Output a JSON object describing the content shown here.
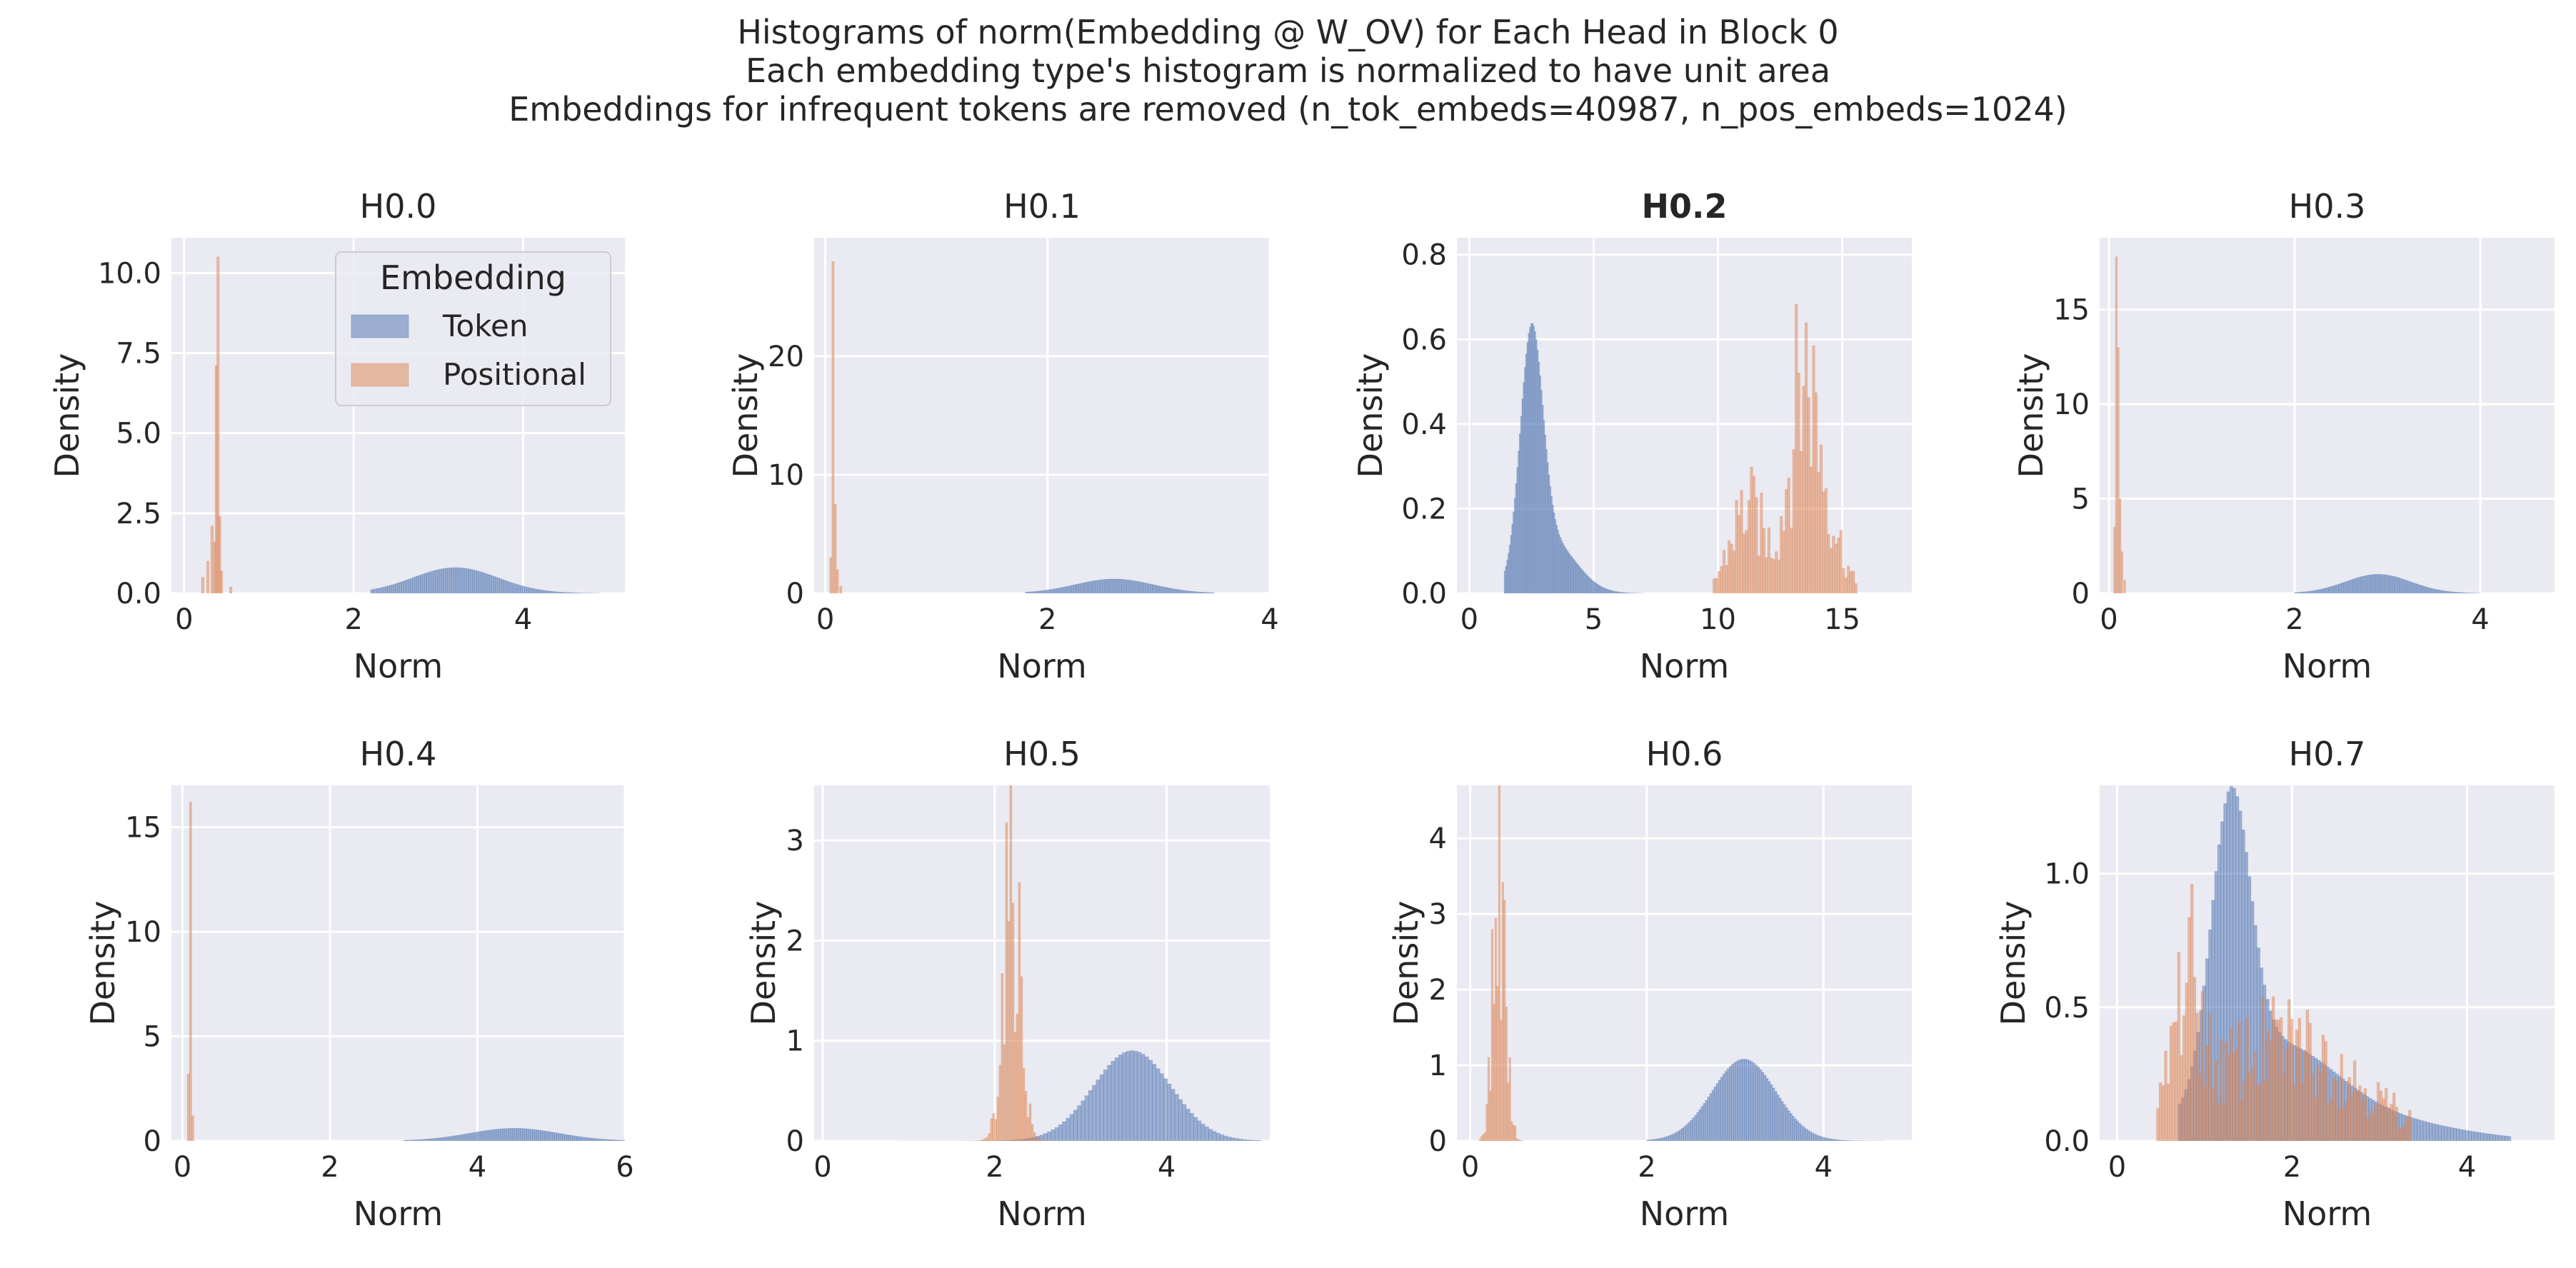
{
  "figure": {
    "title_lines": [
      "Histograms of norm(Embedding @ W_OV) for Each Head in Block 0",
      "Each embedding type's histogram is normalized to have unit area",
      "Embeddings for infrequent tokens are removed (n_tok_embeds=40987, n_pos_embeds=1024)"
    ]
  },
  "colors": {
    "token": "#4c72b0",
    "positional": "#dd8452",
    "panel_bg": "#eaeaf2",
    "grid": "#ffffff"
  },
  "chart_data": [
    {
      "type": "bar",
      "title": "H0.0",
      "title_bold": false,
      "xlabel": "Norm",
      "ylabel": "Density",
      "xlim": [
        -0.15,
        5.2
      ],
      "ylim": [
        0,
        11.1
      ],
      "xticks": [
        0,
        2,
        4
      ],
      "xtick_labels": [
        "0",
        "2",
        "4"
      ],
      "yticks": [
        0,
        2.5,
        5,
        7.5,
        10
      ],
      "ytick_labels": [
        "0.0",
        "2.5",
        "5.0",
        "7.5",
        "10.0"
      ],
      "legend": {
        "title": "Embedding",
        "placement": "top-right",
        "entries": [
          "Token",
          "Positional"
        ]
      },
      "series": [
        {
          "name": "Token",
          "kind": "gauss",
          "components": [
            [
              0.8,
              3.2,
              0.5
            ]
          ],
          "range": [
            2.2,
            4.9
          ]
        },
        {
          "name": "Positional",
          "kind": "spikes",
          "points": [
            [
              0.22,
              0.5
            ],
            [
              0.28,
              1.0
            ],
            [
              0.33,
              2.1
            ],
            [
              0.36,
              1.6
            ],
            [
              0.38,
              7.1
            ],
            [
              0.4,
              10.5
            ],
            [
              0.42,
              2.4
            ],
            [
              0.44,
              0.7
            ],
            [
              0.55,
              0.2
            ]
          ],
          "width": 0.03
        }
      ]
    },
    {
      "type": "bar",
      "title": "H0.1",
      "title_bold": false,
      "xlabel": "Norm",
      "ylabel": "Density",
      "xlim": [
        -0.1,
        4.0
      ],
      "ylim": [
        0,
        30.0
      ],
      "xticks": [
        0,
        2,
        4
      ],
      "xtick_labels": [
        "0",
        "2",
        "4"
      ],
      "yticks": [
        0,
        10,
        20
      ],
      "ytick_labels": [
        "0",
        "10",
        "20"
      ],
      "series": [
        {
          "name": "Token",
          "kind": "gauss",
          "components": [
            [
              1.2,
              2.6,
              0.35
            ]
          ],
          "range": [
            1.8,
            3.5
          ]
        },
        {
          "name": "Positional",
          "kind": "spikes",
          "points": [
            [
              0.05,
              3.0
            ],
            [
              0.07,
              28.0
            ],
            [
              0.09,
              7.5
            ],
            [
              0.11,
              2.0
            ],
            [
              0.14,
              0.6
            ]
          ],
          "width": 0.02
        }
      ]
    },
    {
      "type": "bar",
      "title": "H0.2",
      "title_bold": true,
      "xlabel": "Norm",
      "ylabel": "Density",
      "xlim": [
        -0.5,
        17.8
      ],
      "ylim": [
        0,
        0.84
      ],
      "xticks": [
        0,
        5,
        10,
        15
      ],
      "xtick_labels": [
        "0",
        "5",
        "10",
        "15"
      ],
      "yticks": [
        0,
        0.2,
        0.4,
        0.6,
        0.8
      ],
      "ytick_labels": [
        "0.0",
        "0.2",
        "0.4",
        "0.6",
        "0.8"
      ],
      "series": [
        {
          "name": "Token",
          "kind": "gauss",
          "components": [
            [
              0.55,
              2.5,
              0.45
            ],
            [
              0.12,
              3.3,
              1.0
            ]
          ],
          "range": [
            1.4,
            7.0
          ]
        },
        {
          "name": "Positional",
          "kind": "noisy",
          "components": [
            [
              0.25,
              11.2,
              0.7
            ],
            [
              0.65,
              13.5,
              0.6
            ],
            [
              0.12,
              14.7,
              0.5
            ]
          ],
          "range": [
            9.8,
            15.6
          ],
          "step": 0.1
        }
      ]
    },
    {
      "type": "bar",
      "title": "H0.3",
      "title_bold": false,
      "xlabel": "Norm",
      "ylabel": "Density",
      "xlim": [
        -0.1,
        4.8
      ],
      "ylim": [
        0,
        18.8
      ],
      "xticks": [
        0,
        2,
        4
      ],
      "xtick_labels": [
        "0",
        "2",
        "4"
      ],
      "yticks": [
        0,
        5,
        10,
        15
      ],
      "ytick_labels": [
        "0",
        "5",
        "10",
        "15"
      ],
      "series": [
        {
          "name": "Token",
          "kind": "gauss",
          "components": [
            [
              1.0,
              2.9,
              0.35
            ]
          ],
          "range": [
            2.0,
            4.0
          ]
        },
        {
          "name": "Positional",
          "kind": "spikes",
          "points": [
            [
              0.06,
              3.5
            ],
            [
              0.08,
              17.8
            ],
            [
              0.1,
              13.0
            ],
            [
              0.12,
              5.0
            ],
            [
              0.14,
              2.2
            ],
            [
              0.17,
              0.7
            ]
          ],
          "width": 0.02
        }
      ]
    },
    {
      "type": "bar",
      "title": "H0.4",
      "title_bold": false,
      "xlabel": "Norm",
      "ylabel": "Density",
      "xlim": [
        -0.15,
        6.0
      ],
      "ylim": [
        0,
        17.0
      ],
      "xticks": [
        0,
        2,
        4,
        6
      ],
      "xtick_labels": [
        "0",
        "2",
        "4",
        "6"
      ],
      "yticks": [
        0,
        5,
        10,
        15
      ],
      "ytick_labels": [
        "0",
        "5",
        "10",
        "15"
      ],
      "series": [
        {
          "name": "Token",
          "kind": "gauss",
          "components": [
            [
              0.6,
              4.5,
              0.6
            ]
          ],
          "range": [
            3.0,
            6.0
          ]
        },
        {
          "name": "Positional",
          "kind": "spikes",
          "points": [
            [
              0.08,
              3.2
            ],
            [
              0.11,
              16.2
            ],
            [
              0.14,
              1.2
            ]
          ],
          "width": 0.03
        }
      ]
    },
    {
      "type": "bar",
      "title": "H0.5",
      "title_bold": false,
      "xlabel": "Norm",
      "ylabel": "Density",
      "xlim": [
        -0.1,
        5.2
      ],
      "ylim": [
        0,
        3.55
      ],
      "xticks": [
        0,
        2,
        4
      ],
      "xtick_labels": [
        "0",
        "2",
        "4"
      ],
      "yticks": [
        0,
        1,
        2,
        3
      ],
      "ytick_labels": [
        "0",
        "1",
        "2",
        "3"
      ],
      "series": [
        {
          "name": "Token",
          "kind": "gauss",
          "components": [
            [
              0.9,
              3.6,
              0.45
            ]
          ],
          "range": [
            0.3,
            5.1
          ]
        },
        {
          "name": "Positional",
          "kind": "noisy",
          "components": [
            [
              3.3,
              2.2,
              0.1
            ]
          ],
          "range": [
            1.7,
            2.6
          ],
          "step": 0.025
        }
      ]
    },
    {
      "type": "bar",
      "title": "H0.6",
      "title_bold": false,
      "xlabel": "Norm",
      "ylabel": "Density",
      "xlim": [
        -0.15,
        5.0
      ],
      "ylim": [
        0,
        4.7
      ],
      "xticks": [
        0,
        2,
        4
      ],
      "xtick_labels": [
        "0",
        "2",
        "4"
      ],
      "yticks": [
        0,
        1,
        2,
        3,
        4
      ],
      "ytick_labels": [
        "0",
        "1",
        "2",
        "3",
        "4"
      ],
      "series": [
        {
          "name": "Token",
          "kind": "gauss",
          "components": [
            [
              1.08,
              3.1,
              0.36
            ]
          ],
          "range": [
            2.0,
            4.7
          ]
        },
        {
          "name": "Positional",
          "kind": "noisy",
          "components": [
            [
              4.3,
              0.33,
              0.07
            ]
          ],
          "range": [
            0.1,
            0.6
          ],
          "step": 0.02
        }
      ]
    },
    {
      "type": "bar",
      "title": "H0.7",
      "title_bold": false,
      "xlabel": "Norm",
      "ylabel": "Density",
      "xlim": [
        -0.2,
        5.0
      ],
      "ylim": [
        0,
        1.33
      ],
      "xticks": [
        0,
        2,
        4
      ],
      "xtick_labels": [
        "0",
        "2",
        "4"
      ],
      "yticks": [
        0,
        0.5,
        1.0
      ],
      "ytick_labels": [
        "0.0",
        "0.5",
        "1.0"
      ],
      "series": [
        {
          "name": "Token",
          "kind": "gauss",
          "components": [
            [
              1.05,
              1.3,
              0.22
            ],
            [
              0.35,
              1.8,
              0.7
            ],
            [
              0.06,
              3.2,
              0.8
            ]
          ],
          "range": [
            0.7,
            4.5
          ]
        },
        {
          "name": "Positional",
          "kind": "noisy",
          "components": [
            [
              0.6,
              0.8,
              0.15
            ],
            [
              0.45,
              1.9,
              0.85
            ]
          ],
          "range": [
            0.45,
            3.35
          ],
          "step": 0.03
        }
      ]
    }
  ]
}
